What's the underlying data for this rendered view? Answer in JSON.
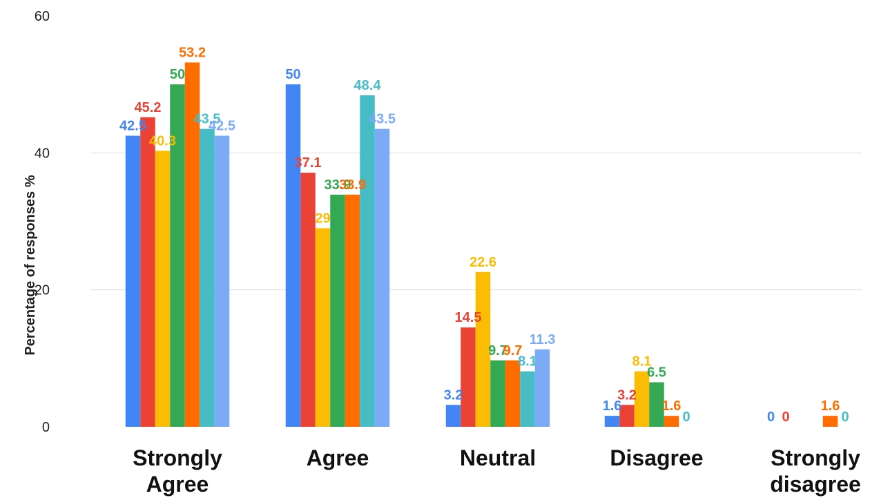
{
  "chart_data": {
    "type": "bar",
    "title": "",
    "xlabel": "",
    "ylabel": "Percentage of responses %",
    "ylim": [
      0,
      60
    ],
    "y_ticks": [
      0,
      20,
      40,
      60
    ],
    "grid": true,
    "legend": "none",
    "categories": [
      [
        "Strongly",
        "Agree"
      ],
      [
        "Agree"
      ],
      [
        "Neutral"
      ],
      [
        "Disagree"
      ],
      [
        "Strongly",
        "disagree"
      ]
    ],
    "series": [
      {
        "color": "#4285F4",
        "values": [
          42.5,
          50,
          3.2,
          1.6,
          0
        ],
        "labels": [
          "42.5",
          "50",
          "3.2",
          "1.6",
          "0"
        ]
      },
      {
        "color": "#EA4335",
        "values": [
          45.2,
          37.1,
          14.5,
          3.2,
          0
        ],
        "labels": [
          "45.2",
          "37.1",
          "14.5",
          "3.2",
          "0"
        ]
      },
      {
        "color": "#FBBC04",
        "values": [
          40.3,
          29,
          22.6,
          8.1,
          null
        ],
        "labels": [
          "40.3",
          "29",
          "22.6",
          "8.1",
          ""
        ]
      },
      {
        "color": "#34A853",
        "values": [
          50,
          33.9,
          9.7,
          6.5,
          null
        ],
        "labels": [
          "50",
          "33.9",
          "9.7",
          "6.5",
          ""
        ]
      },
      {
        "color": "#FF6D01",
        "values": [
          53.2,
          33.9,
          9.7,
          1.6,
          1.6
        ],
        "labels": [
          "53.2",
          "33.9",
          "9.7",
          "1.6",
          "1.6"
        ]
      },
      {
        "color": "#46BDC6",
        "values": [
          43.5,
          48.4,
          8.1,
          0,
          0
        ],
        "labels": [
          "43.5",
          "48.4",
          "8.1",
          "0",
          "0"
        ]
      },
      {
        "color": "#7BAAF7",
        "values": [
          42.5,
          43.5,
          11.3,
          null,
          null
        ],
        "labels": [
          "42.5",
          "43.5",
          "11.3",
          "",
          ""
        ]
      }
    ]
  }
}
